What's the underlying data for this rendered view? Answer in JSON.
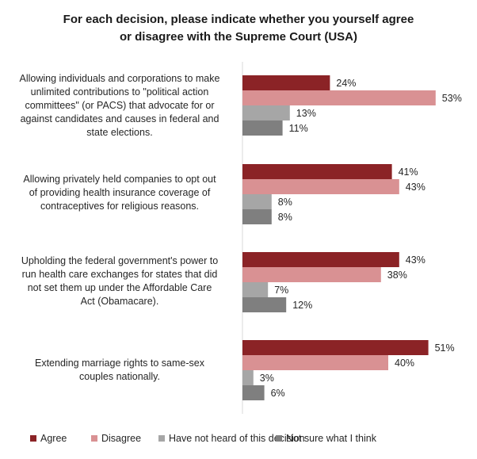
{
  "chart_data": {
    "type": "bar",
    "orientation": "horizontal",
    "title": [
      "For each decision, please indicate whether you yourself agree",
      "or disagree with the Supreme Court (USA)"
    ],
    "categories": [
      [
        "Allowing individuals and corporations to make",
        "unlimited contributions to \"political action",
        "committees\" (or PACS) that advocate for or",
        "against candidates and causes in federal and",
        "state elections."
      ],
      [
        "Allowing privately held companies to opt out",
        "of providing health insurance coverage of",
        "contraceptives for religious reasons."
      ],
      [
        "Upholding the federal government's power to",
        "run health care exchanges for states that did",
        "not set them up under the Affordable Care",
        "Act (Obamacare)."
      ],
      [
        "Extending marriage rights to same-sex",
        "couples nationally."
      ]
    ],
    "series": [
      {
        "name": "Agree",
        "color": "#8b2326",
        "values": [
          24,
          41,
          43,
          51
        ],
        "labels": [
          "24%",
          "41%",
          "43%",
          "51%"
        ]
      },
      {
        "name": "Disagree",
        "color": "#d99193",
        "values": [
          53,
          43,
          38,
          40
        ],
        "labels": [
          "53%",
          "43%",
          "38%",
          "40%"
        ]
      },
      {
        "name": "Have not heard of this decision",
        "color": "#a6a6a6",
        "values": [
          13,
          8,
          7,
          3
        ],
        "labels": [
          "13%",
          "8%",
          "7%",
          "3%"
        ]
      },
      {
        "name": "Not sure what I think",
        "color": "#7f7f7f",
        "values": [
          11,
          8,
          12,
          6
        ],
        "labels": [
          "11%",
          "8%",
          "12%",
          "6%"
        ]
      }
    ],
    "xlim": [
      0,
      55
    ],
    "grid": false,
    "legend_position": "bottom"
  }
}
